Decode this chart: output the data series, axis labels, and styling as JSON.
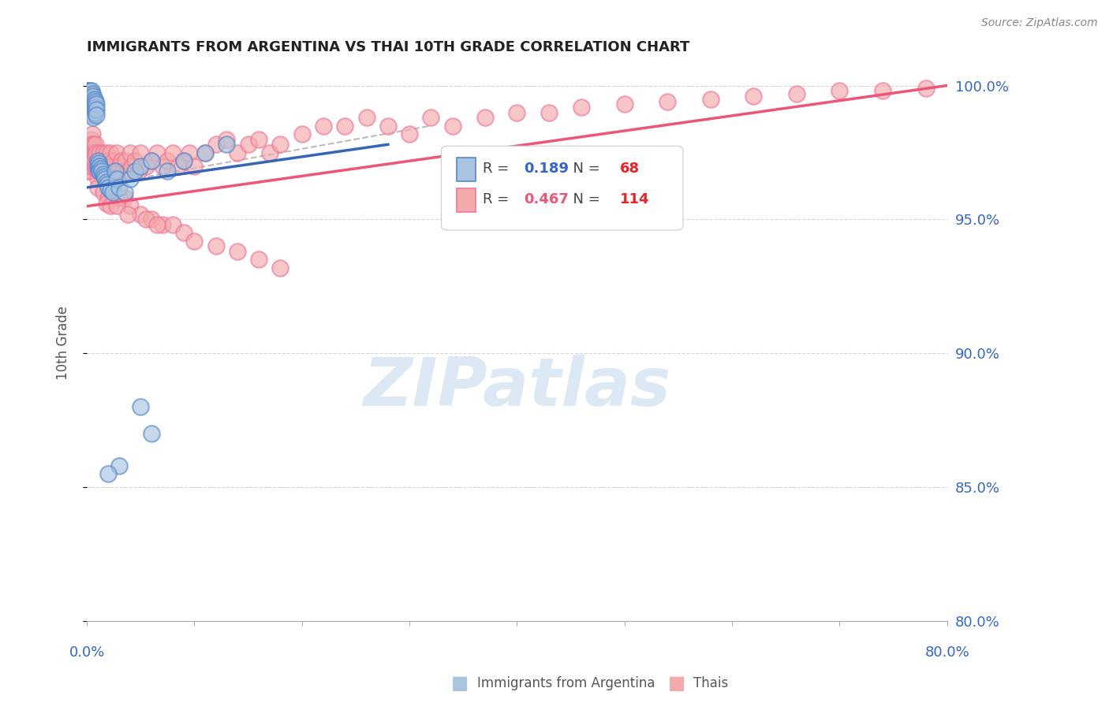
{
  "title": "IMMIGRANTS FROM ARGENTINA VS THAI 10TH GRADE CORRELATION CHART",
  "source": "Source: ZipAtlas.com",
  "ylabel": "10th Grade",
  "right_yticklabels": [
    "80.0%",
    "85.0%",
    "90.0%",
    "95.0%",
    "100.0%"
  ],
  "right_yticks": [
    0.8,
    0.85,
    0.9,
    0.95,
    1.0
  ],
  "legend_blue_r": "0.189",
  "legend_blue_n": "68",
  "legend_pink_r": "0.467",
  "legend_pink_n": "114",
  "legend_blue_label": "Immigrants from Argentina",
  "legend_pink_label": "Thais",
  "blue_color": "#A8C4E0",
  "pink_color": "#F4AAAA",
  "blue_edge_color": "#5588CC",
  "pink_edge_color": "#EE7799",
  "blue_line_color": "#3366BB",
  "pink_line_color": "#EE5577",
  "xmin": 0.0,
  "xmax": 0.8,
  "ymin": 0.8,
  "ymax": 1.008,
  "background_color": "#FFFFFF",
  "grid_color": "#CCCCCC",
  "text_color_blue": "#3366CC",
  "watermark_text": "ZIPatlas",
  "watermark_color": "#DCE9F5",
  "blue_x": [
    0.001,
    0.001,
    0.001,
    0.002,
    0.002,
    0.002,
    0.002,
    0.003,
    0.003,
    0.003,
    0.003,
    0.003,
    0.004,
    0.004,
    0.004,
    0.004,
    0.004,
    0.005,
    0.005,
    0.005,
    0.005,
    0.005,
    0.006,
    0.006,
    0.006,
    0.006,
    0.006,
    0.007,
    0.007,
    0.007,
    0.008,
    0.008,
    0.008,
    0.009,
    0.009,
    0.009,
    0.01,
    0.01,
    0.011,
    0.011,
    0.012,
    0.012,
    0.013,
    0.014,
    0.015,
    0.016,
    0.017,
    0.018,
    0.019,
    0.02,
    0.022,
    0.024,
    0.026,
    0.028,
    0.03,
    0.035,
    0.04,
    0.045,
    0.05,
    0.06,
    0.075,
    0.09,
    0.11,
    0.13,
    0.05,
    0.06,
    0.03,
    0.02
  ],
  "blue_y": [
    0.998,
    0.996,
    0.994,
    0.998,
    0.996,
    0.994,
    0.992,
    0.998,
    0.996,
    0.994,
    0.992,
    0.99,
    0.998,
    0.996,
    0.994,
    0.992,
    0.99,
    0.997,
    0.995,
    0.993,
    0.991,
    0.989,
    0.996,
    0.994,
    0.992,
    0.99,
    0.988,
    0.995,
    0.993,
    0.991,
    0.994,
    0.992,
    0.99,
    0.993,
    0.991,
    0.989,
    0.972,
    0.97,
    0.971,
    0.969,
    0.97,
    0.968,
    0.969,
    0.968,
    0.967,
    0.966,
    0.965,
    0.964,
    0.963,
    0.962,
    0.961,
    0.96,
    0.968,
    0.965,
    0.962,
    0.96,
    0.965,
    0.968,
    0.97,
    0.972,
    0.968,
    0.972,
    0.975,
    0.978,
    0.88,
    0.87,
    0.858,
    0.855
  ],
  "pink_x": [
    0.001,
    0.001,
    0.002,
    0.002,
    0.003,
    0.003,
    0.003,
    0.004,
    0.004,
    0.004,
    0.005,
    0.005,
    0.005,
    0.006,
    0.006,
    0.006,
    0.007,
    0.007,
    0.008,
    0.008,
    0.009,
    0.009,
    0.01,
    0.01,
    0.011,
    0.011,
    0.012,
    0.012,
    0.013,
    0.014,
    0.015,
    0.015,
    0.016,
    0.017,
    0.018,
    0.019,
    0.02,
    0.021,
    0.022,
    0.023,
    0.025,
    0.026,
    0.028,
    0.03,
    0.032,
    0.034,
    0.036,
    0.038,
    0.04,
    0.042,
    0.045,
    0.048,
    0.05,
    0.055,
    0.06,
    0.065,
    0.07,
    0.075,
    0.08,
    0.085,
    0.09,
    0.095,
    0.1,
    0.11,
    0.12,
    0.13,
    0.14,
    0.15,
    0.16,
    0.17,
    0.18,
    0.2,
    0.22,
    0.24,
    0.26,
    0.28,
    0.3,
    0.32,
    0.34,
    0.37,
    0.4,
    0.43,
    0.46,
    0.5,
    0.54,
    0.58,
    0.62,
    0.66,
    0.7,
    0.74,
    0.78,
    0.01,
    0.015,
    0.02,
    0.018,
    0.022,
    0.035,
    0.04,
    0.05,
    0.06,
    0.07,
    0.08,
    0.09,
    0.1,
    0.12,
    0.14,
    0.16,
    0.18,
    0.025,
    0.03,
    0.028,
    0.038,
    0.055,
    0.065
  ],
  "pink_y": [
    0.972,
    0.968,
    0.975,
    0.97,
    0.978,
    0.972,
    0.968,
    0.98,
    0.975,
    0.97,
    0.982,
    0.978,
    0.973,
    0.978,
    0.975,
    0.972,
    0.975,
    0.97,
    0.978,
    0.974,
    0.975,
    0.97,
    0.968,
    0.965,
    0.972,
    0.968,
    0.975,
    0.97,
    0.968,
    0.972,
    0.975,
    0.97,
    0.968,
    0.972,
    0.975,
    0.97,
    0.972,
    0.968,
    0.975,
    0.97,
    0.972,
    0.968,
    0.975,
    0.97,
    0.972,
    0.968,
    0.972,
    0.968,
    0.975,
    0.97,
    0.972,
    0.968,
    0.975,
    0.97,
    0.972,
    0.975,
    0.97,
    0.972,
    0.975,
    0.97,
    0.972,
    0.975,
    0.97,
    0.975,
    0.978,
    0.98,
    0.975,
    0.978,
    0.98,
    0.975,
    0.978,
    0.982,
    0.985,
    0.985,
    0.988,
    0.985,
    0.982,
    0.988,
    0.985,
    0.988,
    0.99,
    0.99,
    0.992,
    0.993,
    0.994,
    0.995,
    0.996,
    0.997,
    0.998,
    0.998,
    0.999,
    0.962,
    0.96,
    0.958,
    0.956,
    0.955,
    0.958,
    0.955,
    0.952,
    0.95,
    0.948,
    0.948,
    0.945,
    0.942,
    0.94,
    0.938,
    0.935,
    0.932,
    0.962,
    0.958,
    0.955,
    0.952,
    0.95,
    0.948
  ],
  "blue_trend_x": [
    0.001,
    0.28
  ],
  "blue_trend_y": [
    0.962,
    0.978
  ],
  "pink_trend_x": [
    0.001,
    0.8
  ],
  "pink_trend_y": [
    0.955,
    1.0
  ],
  "ref_line_x": [
    0.001,
    0.32
  ],
  "ref_line_y": [
    0.962,
    0.985
  ]
}
